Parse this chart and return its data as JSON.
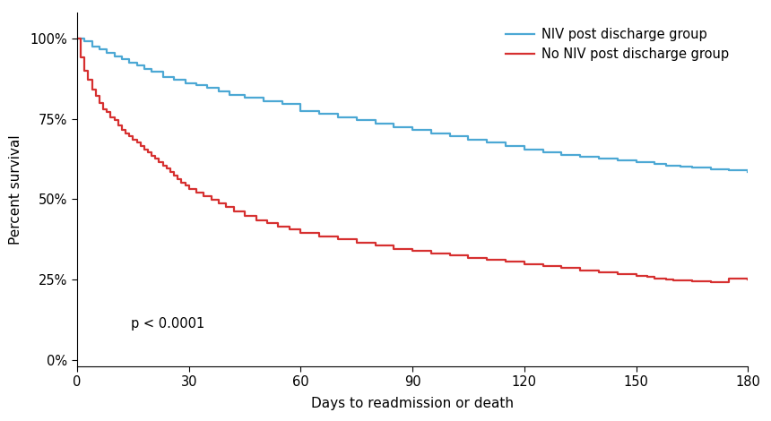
{
  "blue_x": [
    0,
    2,
    4,
    6,
    8,
    10,
    12,
    14,
    16,
    18,
    20,
    23,
    26,
    29,
    32,
    35,
    38,
    41,
    45,
    50,
    55,
    60,
    65,
    70,
    75,
    80,
    85,
    90,
    95,
    100,
    105,
    110,
    115,
    120,
    125,
    130,
    135,
    140,
    145,
    150,
    155,
    158,
    162,
    165,
    170,
    175,
    180
  ],
  "blue_y": [
    1.0,
    0.99,
    0.975,
    0.965,
    0.955,
    0.945,
    0.935,
    0.925,
    0.915,
    0.905,
    0.895,
    0.88,
    0.87,
    0.86,
    0.855,
    0.845,
    0.835,
    0.825,
    0.815,
    0.805,
    0.795,
    0.775,
    0.765,
    0.755,
    0.745,
    0.735,
    0.725,
    0.715,
    0.705,
    0.695,
    0.685,
    0.675,
    0.665,
    0.655,
    0.645,
    0.638,
    0.632,
    0.625,
    0.62,
    0.615,
    0.61,
    0.605,
    0.6,
    0.597,
    0.593,
    0.59,
    0.585
  ],
  "red_x": [
    0,
    1,
    2,
    3,
    4,
    5,
    6,
    7,
    8,
    9,
    10,
    11,
    12,
    13,
    14,
    15,
    16,
    17,
    18,
    19,
    20,
    21,
    22,
    23,
    24,
    25,
    26,
    27,
    28,
    29,
    30,
    32,
    34,
    36,
    38,
    40,
    42,
    45,
    48,
    51,
    54,
    57,
    60,
    65,
    70,
    75,
    80,
    85,
    90,
    95,
    100,
    105,
    110,
    115,
    120,
    125,
    130,
    135,
    140,
    145,
    150,
    153,
    155,
    158,
    160,
    165,
    170,
    175,
    180
  ],
  "red_y": [
    1.0,
    0.94,
    0.9,
    0.87,
    0.84,
    0.82,
    0.8,
    0.78,
    0.77,
    0.755,
    0.745,
    0.73,
    0.715,
    0.705,
    0.695,
    0.685,
    0.675,
    0.665,
    0.655,
    0.645,
    0.635,
    0.625,
    0.615,
    0.605,
    0.595,
    0.585,
    0.573,
    0.562,
    0.552,
    0.542,
    0.532,
    0.52,
    0.508,
    0.498,
    0.488,
    0.475,
    0.462,
    0.448,
    0.435,
    0.425,
    0.415,
    0.405,
    0.395,
    0.385,
    0.375,
    0.365,
    0.355,
    0.345,
    0.338,
    0.332,
    0.325,
    0.318,
    0.312,
    0.305,
    0.298,
    0.292,
    0.285,
    0.278,
    0.272,
    0.268,
    0.262,
    0.258,
    0.254,
    0.25,
    0.248,
    0.245,
    0.243,
    0.252,
    0.25
  ],
  "blue_color": "#4ca8d4",
  "red_color": "#d63030",
  "xlabel": "Days to readmission or death",
  "ylabel": "Percent survival",
  "xlim": [
    0,
    180
  ],
  "ylim": [
    -0.02,
    1.08
  ],
  "xticks": [
    0,
    30,
    60,
    90,
    120,
    150,
    180
  ],
  "yticks": [
    0.0,
    0.25,
    0.5,
    0.75,
    1.0
  ],
  "ytick_labels": [
    "0%",
    "25%",
    "50%",
    "75%",
    "100%"
  ],
  "legend_blue": "NIV post discharge group",
  "legend_red": "No NIV post discharge group",
  "pvalue_text": "p < 0.0001",
  "background_color": "#ffffff",
  "linewidth": 1.6
}
